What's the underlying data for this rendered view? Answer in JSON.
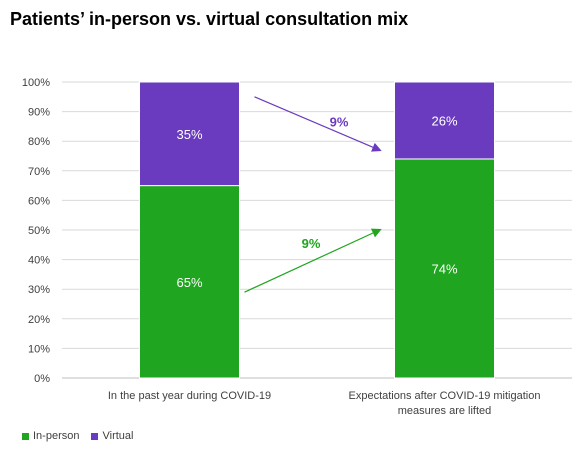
{
  "title": "Patients’ in-person vs. virtual consultation mix",
  "colors": {
    "in_person": "#1fa51f",
    "virtual": "#6a3bbf",
    "text": "#404040",
    "grid": "#d9d9d9"
  },
  "chart_data": {
    "type": "bar",
    "stacked": true,
    "title": "Patients’ in-person vs. virtual consultation mix",
    "categories": [
      [
        "In the past year during COVID-19"
      ],
      [
        "Expectations after COVID-19 mitigation",
        "measures are lifted"
      ]
    ],
    "series": [
      {
        "name": "In-person",
        "values": [
          65,
          74
        ],
        "labels": [
          "65%",
          "74%"
        ]
      },
      {
        "name": "Virtual",
        "values": [
          35,
          26
        ],
        "labels": [
          "35%",
          "26%"
        ]
      }
    ],
    "ylim": [
      0,
      100
    ],
    "yticks": [
      "0%",
      "10%",
      "20%",
      "30%",
      "40%",
      "50%",
      "60%",
      "70%",
      "80%",
      "90%",
      "100%"
    ],
    "grid": true,
    "legend": "bottom-left",
    "annotations": [
      {
        "text": "9%",
        "series": "Virtual",
        "direction": "down"
      },
      {
        "text": "9%",
        "series": "In-person",
        "direction": "up"
      }
    ]
  }
}
